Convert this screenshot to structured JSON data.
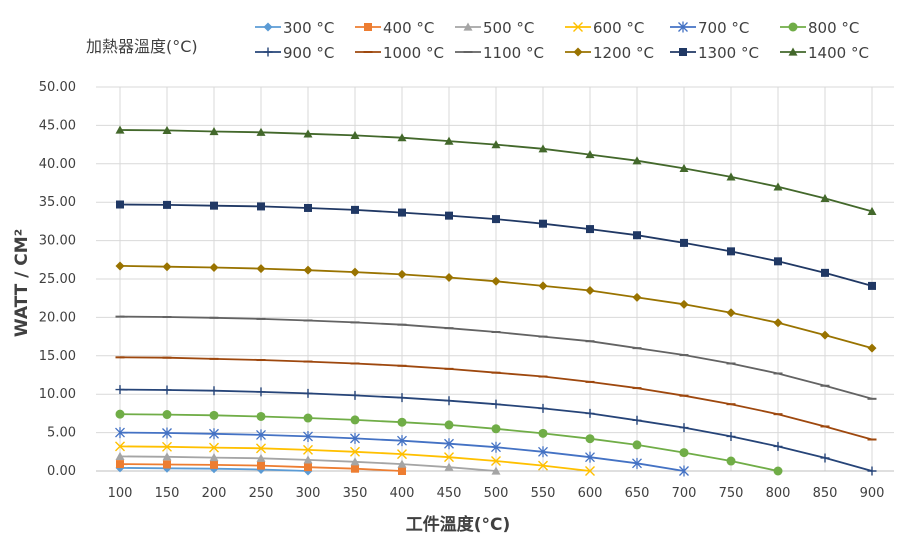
{
  "chart_data": {
    "type": "line",
    "title": "",
    "xlabel": "工件溫度(°C)",
    "ylabel": "WATT / CM²",
    "legend_title": "加熱器溫度(°C)",
    "legend_position": "top",
    "xlim": [
      100,
      900
    ],
    "ylim": [
      0,
      50
    ],
    "grid": true,
    "x": [
      100,
      150,
      200,
      250,
      300,
      350,
      400,
      450,
      500,
      550,
      600,
      650,
      700,
      750,
      800,
      850,
      900
    ],
    "x_tick_labels": [
      "100",
      "150",
      "200",
      "250",
      "300",
      "350",
      "400",
      "450",
      "500",
      "550",
      "600",
      "650",
      "700",
      "750",
      "800",
      "850",
      "900"
    ],
    "y_tick_labels": [
      "0.00",
      "5.00",
      "10.00",
      "15.00",
      "20.00",
      "25.00",
      "30.00",
      "35.00",
      "40.00",
      "45.00",
      "50.00"
    ],
    "series": [
      {
        "name": "300 °C",
        "color": "#5B9BD5",
        "marker": "diamond",
        "x": [
          100,
          150,
          200,
          250,
          300
        ],
        "values": [
          0.4,
          0.35,
          0.3,
          0.2,
          0.0
        ]
      },
      {
        "name": "400 °C",
        "color": "#ED7D31",
        "marker": "square",
        "x": [
          100,
          150,
          200,
          250,
          300,
          350,
          400
        ],
        "values": [
          0.9,
          0.85,
          0.8,
          0.7,
          0.5,
          0.3,
          0.0
        ]
      },
      {
        "name": "500 °C",
        "color": "#A5A5A5",
        "marker": "triangle",
        "x": [
          100,
          150,
          200,
          250,
          300,
          350,
          400,
          450,
          500
        ],
        "values": [
          1.9,
          1.85,
          1.75,
          1.65,
          1.45,
          1.2,
          0.9,
          0.5,
          0.0
        ]
      },
      {
        "name": "600 °C",
        "color": "#FFC000",
        "marker": "x",
        "x": [
          100,
          150,
          200,
          250,
          300,
          350,
          400,
          450,
          500,
          550,
          600
        ],
        "values": [
          3.2,
          3.15,
          3.05,
          2.95,
          2.75,
          2.5,
          2.2,
          1.8,
          1.3,
          0.7,
          0.0
        ]
      },
      {
        "name": "700 °C",
        "color": "#4472C4",
        "marker": "star",
        "x": [
          100,
          150,
          200,
          250,
          300,
          350,
          400,
          450,
          500,
          550,
          600,
          650,
          700
        ],
        "values": [
          5.0,
          4.95,
          4.85,
          4.7,
          4.5,
          4.25,
          3.95,
          3.55,
          3.1,
          2.5,
          1.8,
          1.0,
          0.0
        ]
      },
      {
        "name": "800 °C",
        "color": "#70AD47",
        "marker": "circle",
        "x": [
          100,
          150,
          200,
          250,
          300,
          350,
          400,
          450,
          500,
          550,
          600,
          650,
          700,
          750,
          800
        ],
        "values": [
          7.4,
          7.35,
          7.25,
          7.1,
          6.9,
          6.65,
          6.35,
          6.0,
          5.5,
          4.9,
          4.2,
          3.4,
          2.4,
          1.3,
          0.0
        ]
      },
      {
        "name": "900 °C",
        "color": "#264478",
        "marker": "plus",
        "x": [
          100,
          150,
          200,
          250,
          300,
          350,
          400,
          450,
          500,
          550,
          600,
          650,
          700,
          750,
          800,
          850,
          900
        ],
        "values": [
          10.6,
          10.55,
          10.45,
          10.3,
          10.1,
          9.85,
          9.55,
          9.15,
          8.7,
          8.15,
          7.5,
          6.6,
          5.65,
          4.5,
          3.2,
          1.7,
          0.0
        ]
      },
      {
        "name": "1000 °C",
        "color": "#9E480E",
        "marker": "dash",
        "x": [
          100,
          150,
          200,
          250,
          300,
          350,
          400,
          450,
          500,
          550,
          600,
          650,
          700,
          750,
          800,
          850,
          900
        ],
        "values": [
          14.8,
          14.75,
          14.6,
          14.45,
          14.25,
          14.0,
          13.7,
          13.3,
          12.8,
          12.3,
          11.6,
          10.8,
          9.8,
          8.7,
          7.4,
          5.8,
          4.1
        ]
      },
      {
        "name": "1100 °C",
        "color": "#636363",
        "marker": "dash",
        "x": [
          100,
          150,
          200,
          250,
          300,
          350,
          400,
          450,
          500,
          550,
          600,
          650,
          700,
          750,
          800,
          850,
          900
        ],
        "values": [
          20.1,
          20.05,
          19.95,
          19.8,
          19.6,
          19.35,
          19.05,
          18.6,
          18.1,
          17.5,
          16.9,
          16.0,
          15.1,
          14.0,
          12.7,
          11.1,
          9.4
        ]
      },
      {
        "name": "1200 °C",
        "color": "#997300",
        "marker": "diamond",
        "x": [
          100,
          150,
          200,
          250,
          300,
          350,
          400,
          450,
          500,
          550,
          600,
          650,
          700,
          750,
          800,
          850,
          900
        ],
        "values": [
          26.7,
          26.6,
          26.5,
          26.35,
          26.15,
          25.9,
          25.6,
          25.2,
          24.7,
          24.1,
          23.5,
          22.6,
          21.7,
          20.6,
          19.3,
          17.7,
          16.0
        ]
      },
      {
        "name": "1300 °C",
        "color": "#203864",
        "marker": "square",
        "x": [
          100,
          150,
          200,
          250,
          300,
          350,
          400,
          450,
          500,
          550,
          600,
          650,
          700,
          750,
          800,
          850,
          900
        ],
        "values": [
          34.7,
          34.65,
          34.55,
          34.45,
          34.25,
          34.0,
          33.65,
          33.25,
          32.8,
          32.2,
          31.5,
          30.7,
          29.7,
          28.6,
          27.3,
          25.8,
          24.1
        ]
      },
      {
        "name": "1400 °C",
        "color": "#43682B",
        "marker": "triangle",
        "x": [
          100,
          150,
          200,
          250,
          300,
          350,
          400,
          450,
          500,
          550,
          600,
          650,
          700,
          750,
          800,
          850,
          900
        ],
        "values": [
          44.4,
          44.35,
          44.2,
          44.1,
          43.9,
          43.7,
          43.4,
          42.95,
          42.5,
          41.95,
          41.2,
          40.4,
          39.4,
          38.3,
          37.0,
          35.5,
          33.8
        ]
      }
    ]
  }
}
